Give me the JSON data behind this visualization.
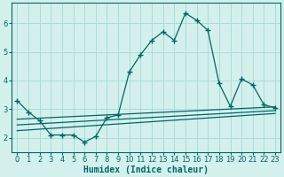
{
  "xlabel": "Humidex (Indice chaleur)",
  "bg_color": "#d4f0ec",
  "grid_color": "#aaddd8",
  "line_color": "#006666",
  "xlim": [
    -0.5,
    23.5
  ],
  "ylim": [
    1.5,
    6.7
  ],
  "yticks": [
    2,
    3,
    4,
    5,
    6
  ],
  "xticks": [
    0,
    1,
    2,
    3,
    4,
    5,
    6,
    7,
    8,
    9,
    10,
    11,
    12,
    13,
    14,
    15,
    16,
    17,
    18,
    19,
    20,
    21,
    22,
    23
  ],
  "main_x": [
    0,
    1,
    2,
    3,
    4,
    5,
    6,
    7,
    8,
    9,
    10,
    11,
    12,
    13,
    14,
    15,
    16,
    17,
    18,
    19,
    20,
    21,
    22,
    23
  ],
  "main_y": [
    3.3,
    2.9,
    2.6,
    2.1,
    2.1,
    2.1,
    1.85,
    2.05,
    2.7,
    2.8,
    4.3,
    4.9,
    5.4,
    5.7,
    5.4,
    6.35,
    6.1,
    5.75,
    3.9,
    3.1,
    4.05,
    3.85,
    3.15,
    3.05
  ],
  "line2_x": [
    0,
    23
  ],
  "line2_y": [
    2.65,
    3.08
  ],
  "line3_x": [
    0,
    23
  ],
  "line3_y": [
    2.45,
    2.95
  ],
  "line4_x": [
    0,
    23
  ],
  "line4_y": [
    2.25,
    2.85
  ],
  "tick_fontsize": 6,
  "xlabel_fontsize": 7
}
